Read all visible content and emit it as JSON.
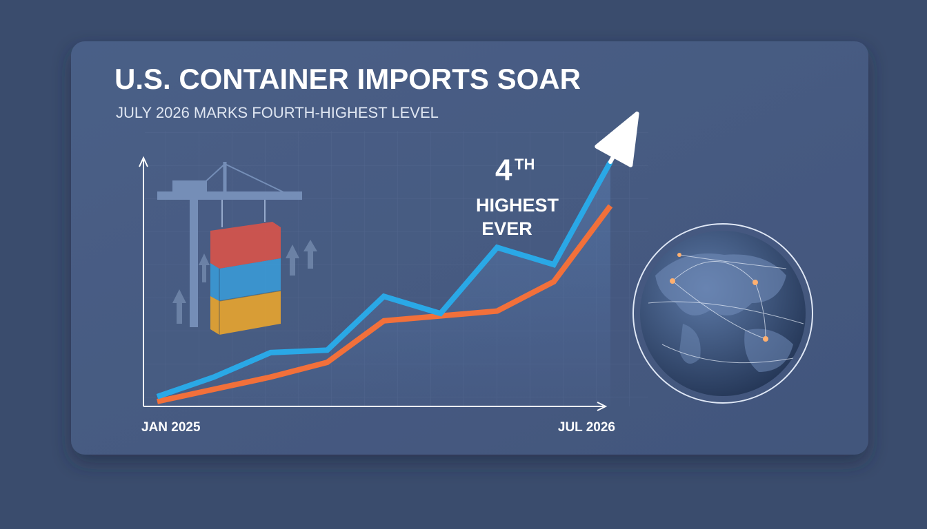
{
  "chart_data": {
    "type": "line",
    "title": "U.S. CONTAINER IMPORTS SOAR",
    "subtitle": "JULY 2026 MARKS FOURTH-HIGHEST LEVEL",
    "categories": [
      "JAN 2025",
      null,
      null,
      null,
      null,
      null,
      null,
      null,
      "JUL 2026"
    ],
    "series": [
      {
        "color": "#2aa8e6",
        "values": [
          4,
          12,
          22,
          23,
          45,
          38,
          65,
          58,
          100
        ]
      },
      {
        "color": "#f2703a",
        "values": [
          2,
          7,
          12,
          18,
          35,
          37,
          39,
          51,
          82
        ]
      }
    ],
    "ylim": [
      0,
      100
    ],
    "annotation": {
      "number": "4",
      "suffix": "TH",
      "lines": [
        "HIGHEST",
        "EVER"
      ]
    }
  }
}
